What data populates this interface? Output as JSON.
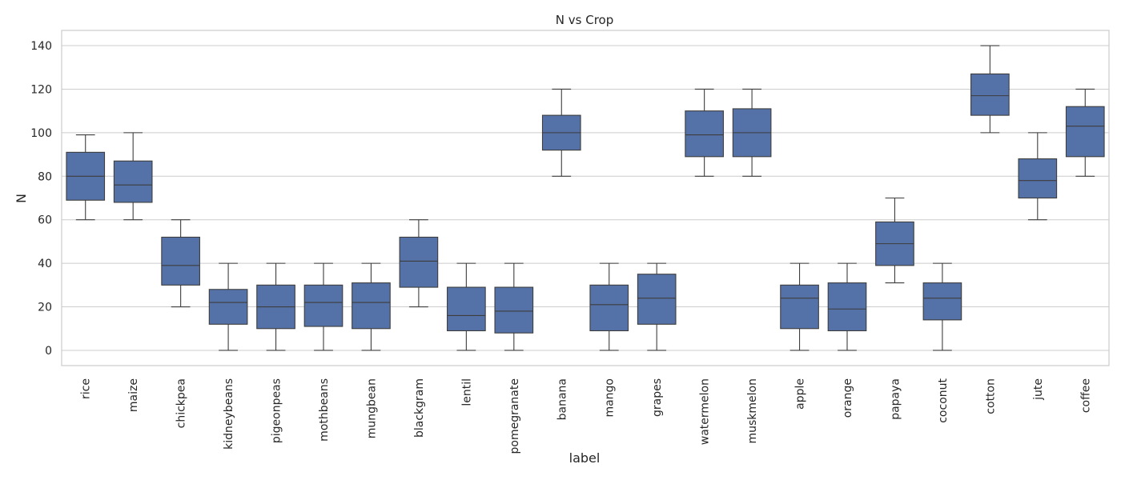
{
  "chart_data": {
    "type": "box",
    "title": "N vs Crop",
    "xlabel": "label",
    "ylabel": "N",
    "ylim": [
      -7,
      147
    ],
    "yticks": [
      0,
      20,
      40,
      60,
      80,
      100,
      120,
      140
    ],
    "grid": true,
    "box_color": "#5572a8",
    "categories": [
      "rice",
      "maize",
      "chickpea",
      "kidneybeans",
      "pigeonpeas",
      "mothbeans",
      "mungbean",
      "blackgram",
      "lentil",
      "pomegranate",
      "banana",
      "mango",
      "grapes",
      "watermelon",
      "muskmelon",
      "apple",
      "orange",
      "papaya",
      "coconut",
      "cotton",
      "jute",
      "coffee"
    ],
    "boxes": [
      {
        "min": 60,
        "q1": 69,
        "median": 80,
        "q3": 91,
        "max": 99
      },
      {
        "min": 60,
        "q1": 68,
        "median": 76,
        "q3": 87,
        "max": 100
      },
      {
        "min": 20,
        "q1": 30,
        "median": 39,
        "q3": 52,
        "max": 60
      },
      {
        "min": 0,
        "q1": 12,
        "median": 22,
        "q3": 28,
        "max": 40
      },
      {
        "min": 0,
        "q1": 10,
        "median": 20,
        "q3": 30,
        "max": 40
      },
      {
        "min": 0,
        "q1": 11,
        "median": 22,
        "q3": 30,
        "max": 40
      },
      {
        "min": 0,
        "q1": 10,
        "median": 22,
        "q3": 31,
        "max": 40
      },
      {
        "min": 20,
        "q1": 29,
        "median": 41,
        "q3": 52,
        "max": 60
      },
      {
        "min": 0,
        "q1": 9,
        "median": 16,
        "q3": 29,
        "max": 40
      },
      {
        "min": 0,
        "q1": 8,
        "median": 18,
        "q3": 29,
        "max": 40
      },
      {
        "min": 80,
        "q1": 92,
        "median": 100,
        "q3": 108,
        "max": 120
      },
      {
        "min": 0,
        "q1": 9,
        "median": 21,
        "q3": 30,
        "max": 40
      },
      {
        "min": 0,
        "q1": 12,
        "median": 24,
        "q3": 35,
        "max": 40
      },
      {
        "min": 80,
        "q1": 89,
        "median": 99,
        "q3": 110,
        "max": 120
      },
      {
        "min": 80,
        "q1": 89,
        "median": 100,
        "q3": 111,
        "max": 120
      },
      {
        "min": 0,
        "q1": 10,
        "median": 24,
        "q3": 30,
        "max": 40
      },
      {
        "min": 0,
        "q1": 9,
        "median": 19,
        "q3": 31,
        "max": 40
      },
      {
        "min": 31,
        "q1": 39,
        "median": 49,
        "q3": 59,
        "max": 70
      },
      {
        "min": 0,
        "q1": 14,
        "median": 24,
        "q3": 31,
        "max": 40
      },
      {
        "min": 100,
        "q1": 108,
        "median": 117,
        "q3": 127,
        "max": 140
      },
      {
        "min": 60,
        "q1": 70,
        "median": 78,
        "q3": 88,
        "max": 100
      },
      {
        "min": 80,
        "q1": 89,
        "median": 103,
        "q3": 112,
        "max": 120
      }
    ]
  }
}
